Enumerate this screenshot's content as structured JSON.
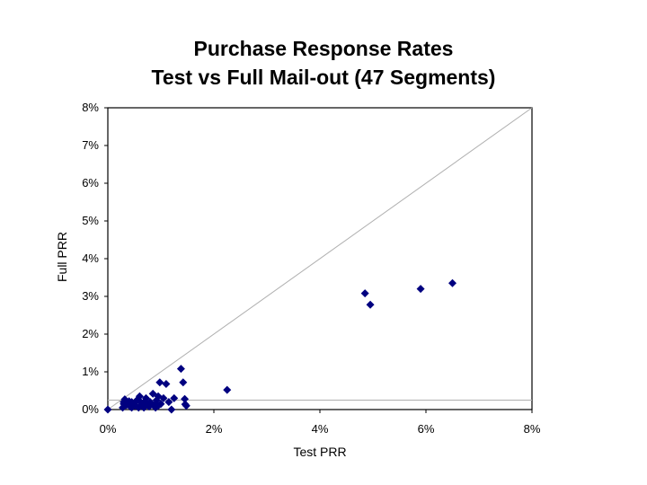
{
  "chart_data": {
    "type": "scatter",
    "title_lines": [
      "Purchase Response Rates",
      "Test vs Full Mail-out (47 Segments)"
    ],
    "xlabel": "Test PRR",
    "ylabel": "Full PRR",
    "xlim": [
      0,
      8
    ],
    "ylim": [
      0,
      8
    ],
    "x_unit": "%",
    "y_unit": "%",
    "x_ticks": [
      "0%",
      "2%",
      "4%",
      "6%",
      "8%"
    ],
    "y_ticks": [
      "0%",
      "1%",
      "2%",
      "3%",
      "4%",
      "5%",
      "6%",
      "7%",
      "8%"
    ],
    "grid": false,
    "legend": "none",
    "reference_lines": [
      {
        "name": "diagonal",
        "from": [
          0,
          0
        ],
        "to": [
          8,
          8
        ],
        "color": "#b0b0b0"
      },
      {
        "name": "horizontal",
        "from": [
          0,
          0.25
        ],
        "to": [
          8,
          0.25
        ],
        "color": "#b0b0b0"
      }
    ],
    "marker_color": "#000080",
    "points": [
      [
        0.0,
        0.0
      ],
      [
        0.28,
        0.05
      ],
      [
        0.3,
        0.2
      ],
      [
        0.32,
        0.27
      ],
      [
        0.35,
        0.12
      ],
      [
        0.4,
        0.22
      ],
      [
        0.42,
        0.08
      ],
      [
        0.45,
        0.2
      ],
      [
        0.5,
        0.15
      ],
      [
        0.52,
        0.1
      ],
      [
        0.55,
        0.25
      ],
      [
        0.58,
        0.05
      ],
      [
        0.6,
        0.35
      ],
      [
        0.62,
        0.2
      ],
      [
        0.65,
        0.12
      ],
      [
        0.7,
        0.22
      ],
      [
        0.72,
        0.3
      ],
      [
        0.75,
        0.15
      ],
      [
        0.78,
        0.08
      ],
      [
        0.8,
        0.2
      ],
      [
        0.85,
        0.42
      ],
      [
        0.88,
        0.12
      ],
      [
        0.9,
        0.05
      ],
      [
        0.92,
        0.25
      ],
      [
        0.95,
        0.1
      ],
      [
        0.98,
        0.72
      ],
      [
        1.0,
        0.15
      ],
      [
        1.05,
        0.3
      ],
      [
        1.1,
        0.68
      ],
      [
        1.15,
        0.2
      ],
      [
        1.2,
        0.0
      ],
      [
        1.25,
        0.3
      ],
      [
        1.38,
        1.08
      ],
      [
        1.42,
        0.72
      ],
      [
        1.45,
        0.28
      ],
      [
        1.46,
        0.14
      ],
      [
        1.48,
        0.1
      ],
      [
        2.25,
        0.52
      ],
      [
        4.85,
        3.08
      ],
      [
        4.95,
        2.78
      ],
      [
        5.9,
        3.2
      ],
      [
        6.5,
        3.35
      ],
      [
        0.3,
        0.15
      ],
      [
        0.45,
        0.05
      ],
      [
        0.68,
        0.05
      ],
      [
        0.82,
        0.15
      ],
      [
        0.95,
        0.35
      ]
    ]
  }
}
